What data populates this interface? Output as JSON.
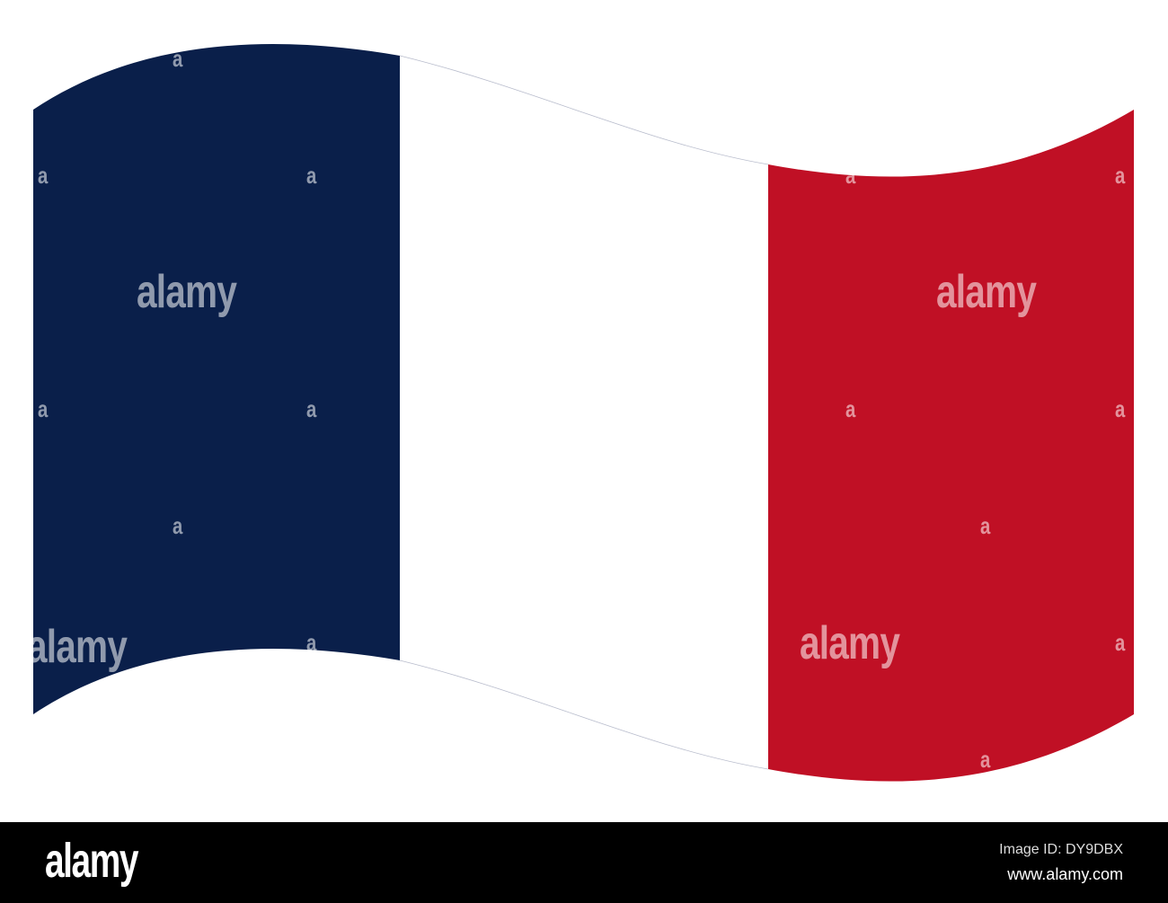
{
  "flag": {
    "stripes": [
      {
        "name": "blue",
        "color": "#0a1f4a"
      },
      {
        "name": "white",
        "color": "#ffffff"
      },
      {
        "name": "red",
        "color": "#c01025"
      }
    ]
  },
  "watermark": {
    "text": "alamy",
    "mark": "a"
  },
  "footer": {
    "logo": "alamy",
    "image_id": "Image ID: DY9DBX",
    "website": "www.alamy.com"
  }
}
